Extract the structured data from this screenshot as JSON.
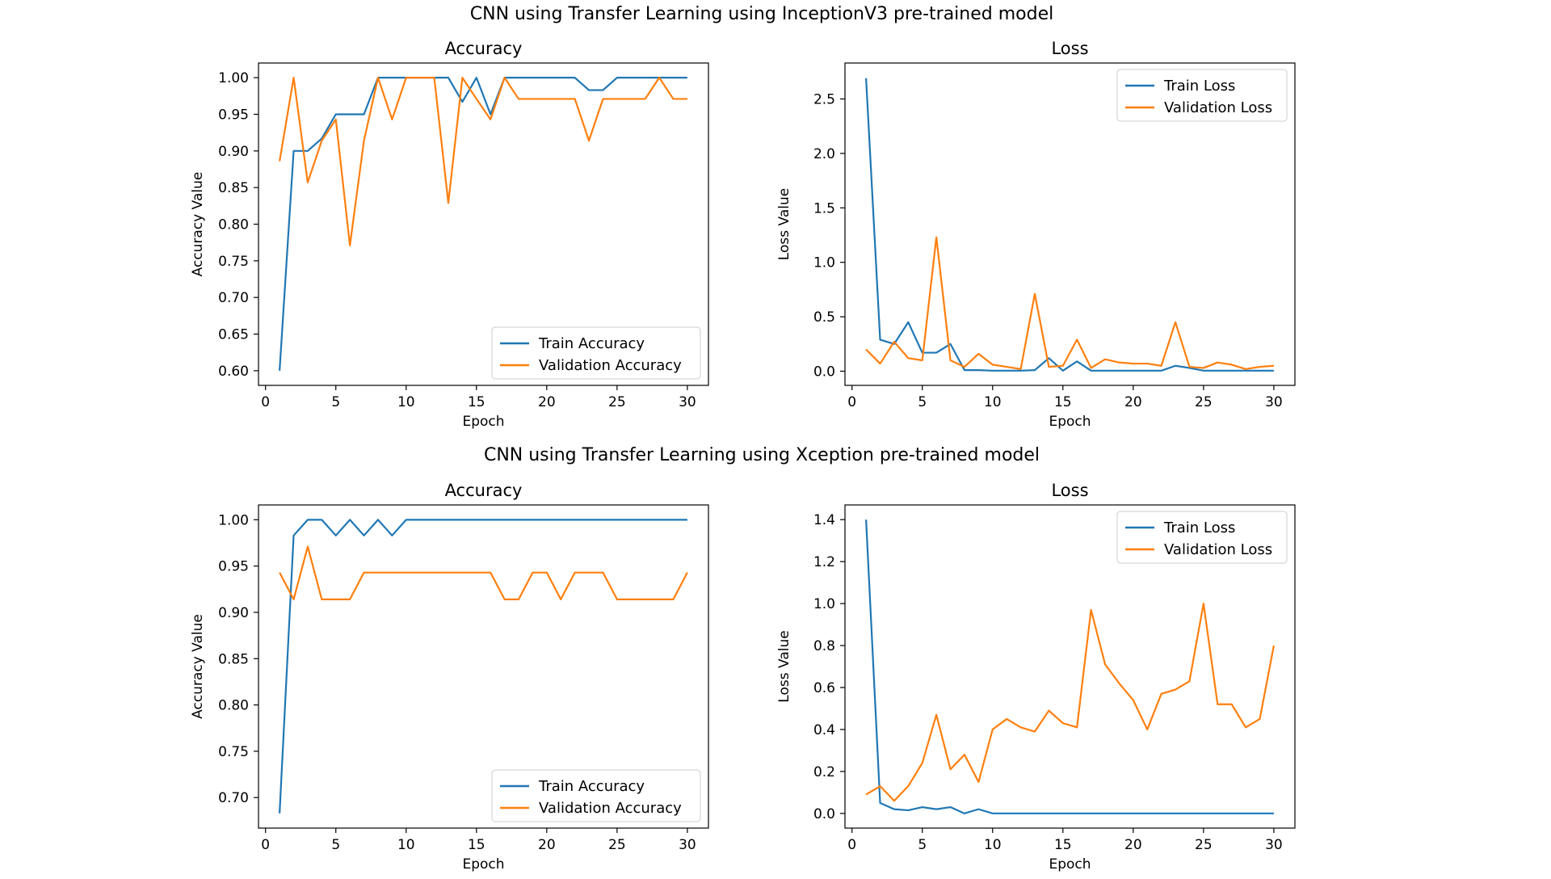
{
  "figure": {
    "row_titles": [
      "CNN using Transfer Learning using InceptionV3 pre-trained model",
      "CNN using Transfer Learning using Xception pre-trained model"
    ]
  },
  "colors": {
    "train": "#1f77b4",
    "validation": "#ff7f0e"
  },
  "chart_data": [
    {
      "type": "line",
      "title": "Accuracy",
      "xlabel": "Epoch",
      "ylabel": "Accuracy Value",
      "xlim": [
        -0.5,
        31.5
      ],
      "ylim": [
        0.58,
        1.02
      ],
      "xticks": [
        0,
        5,
        10,
        15,
        20,
        25,
        30
      ],
      "yticks": [
        0.6,
        0.65,
        0.7,
        0.75,
        0.8,
        0.85,
        0.9,
        0.95,
        1.0
      ],
      "ytick_decimals": 2,
      "legend_position": "lower-right",
      "x": [
        1,
        2,
        3,
        4,
        5,
        6,
        7,
        8,
        9,
        10,
        11,
        12,
        13,
        14,
        15,
        16,
        17,
        18,
        19,
        20,
        21,
        22,
        23,
        24,
        25,
        26,
        27,
        28,
        29,
        30
      ],
      "series": [
        {
          "name": "Train Accuracy",
          "color": "#1f77b4",
          "values": [
            0.6,
            0.9,
            0.9,
            0.917,
            0.95,
            0.95,
            0.95,
            1.0,
            1.0,
            1.0,
            1.0,
            1.0,
            1.0,
            0.967,
            1.0,
            0.95,
            1.0,
            1.0,
            1.0,
            1.0,
            1.0,
            1.0,
            0.983,
            0.983,
            1.0,
            1.0,
            1.0,
            1.0,
            1.0,
            1.0
          ]
        },
        {
          "name": "Validation Accuracy",
          "color": "#ff7f0e",
          "values": [
            0.886,
            1.0,
            0.857,
            0.914,
            0.943,
            0.771,
            0.914,
            1.0,
            0.943,
            1.0,
            1.0,
            1.0,
            0.829,
            1.0,
            0.971,
            0.943,
            1.0,
            0.971,
            0.971,
            0.971,
            0.971,
            0.971,
            0.914,
            0.971,
            0.971,
            0.971,
            0.971,
            1.0,
            0.971,
            0.971
          ]
        }
      ]
    },
    {
      "type": "line",
      "title": "Loss",
      "xlabel": "Epoch",
      "ylabel": "Loss Value",
      "xlim": [
        -0.5,
        31.5
      ],
      "ylim": [
        -0.13,
        2.83
      ],
      "xticks": [
        0,
        5,
        10,
        15,
        20,
        25,
        30
      ],
      "yticks": [
        0.0,
        0.5,
        1.0,
        1.5,
        2.0,
        2.5
      ],
      "ytick_decimals": 1,
      "legend_position": "upper-right",
      "x": [
        1,
        2,
        3,
        4,
        5,
        6,
        7,
        8,
        9,
        10,
        11,
        12,
        13,
        14,
        15,
        16,
        17,
        18,
        19,
        20,
        21,
        22,
        23,
        24,
        25,
        26,
        27,
        28,
        29,
        30
      ],
      "series": [
        {
          "name": "Train Loss",
          "color": "#1f77b4",
          "values": [
            2.69,
            0.29,
            0.25,
            0.45,
            0.17,
            0.17,
            0.25,
            0.01,
            0.01,
            0.005,
            0.005,
            0.005,
            0.01,
            0.12,
            0.005,
            0.09,
            0.005,
            0.005,
            0.005,
            0.005,
            0.005,
            0.005,
            0.05,
            0.03,
            0.005,
            0.005,
            0.005,
            0.005,
            0.005,
            0.005
          ]
        },
        {
          "name": "Validation Loss",
          "color": "#ff7f0e",
          "values": [
            0.2,
            0.07,
            0.27,
            0.12,
            0.1,
            1.23,
            0.1,
            0.04,
            0.16,
            0.06,
            0.04,
            0.02,
            0.71,
            0.04,
            0.05,
            0.29,
            0.03,
            0.11,
            0.08,
            0.07,
            0.07,
            0.05,
            0.45,
            0.04,
            0.03,
            0.08,
            0.06,
            0.02,
            0.04,
            0.05
          ]
        }
      ]
    },
    {
      "type": "line",
      "title": "Accuracy",
      "xlabel": "Epoch",
      "ylabel": "Accuracy Value",
      "xlim": [
        -0.5,
        31.5
      ],
      "ylim": [
        0.667,
        1.016
      ],
      "xticks": [
        0,
        5,
        10,
        15,
        20,
        25,
        30
      ],
      "yticks": [
        0.7,
        0.75,
        0.8,
        0.85,
        0.9,
        0.95,
        1.0
      ],
      "ytick_decimals": 2,
      "legend_position": "lower-right",
      "x": [
        1,
        2,
        3,
        4,
        5,
        6,
        7,
        8,
        9,
        10,
        11,
        12,
        13,
        14,
        15,
        16,
        17,
        18,
        19,
        20,
        21,
        22,
        23,
        24,
        25,
        26,
        27,
        28,
        29,
        30
      ],
      "series": [
        {
          "name": "Train Accuracy",
          "color": "#1f77b4",
          "values": [
            0.683,
            0.983,
            1.0,
            1.0,
            0.983,
            1.0,
            0.983,
            1.0,
            0.983,
            1.0,
            1.0,
            1.0,
            1.0,
            1.0,
            1.0,
            1.0,
            1.0,
            1.0,
            1.0,
            1.0,
            1.0,
            1.0,
            1.0,
            1.0,
            1.0,
            1.0,
            1.0,
            1.0,
            1.0,
            1.0
          ]
        },
        {
          "name": "Validation Accuracy",
          "color": "#ff7f0e",
          "values": [
            0.943,
            0.914,
            0.971,
            0.914,
            0.914,
            0.914,
            0.943,
            0.943,
            0.943,
            0.943,
            0.943,
            0.943,
            0.943,
            0.943,
            0.943,
            0.943,
            0.914,
            0.914,
            0.943,
            0.943,
            0.914,
            0.943,
            0.943,
            0.943,
            0.914,
            0.914,
            0.914,
            0.914,
            0.914,
            0.943
          ]
        }
      ]
    },
    {
      "type": "line",
      "title": "Loss",
      "xlabel": "Epoch",
      "ylabel": "Loss Value",
      "xlim": [
        -0.5,
        31.5
      ],
      "ylim": [
        -0.07,
        1.47
      ],
      "xticks": [
        0,
        5,
        10,
        15,
        20,
        25,
        30
      ],
      "yticks": [
        0.0,
        0.2,
        0.4,
        0.6,
        0.8,
        1.0,
        1.2,
        1.4
      ],
      "ytick_decimals": 1,
      "legend_position": "upper-right",
      "x": [
        1,
        2,
        3,
        4,
        5,
        6,
        7,
        8,
        9,
        10,
        11,
        12,
        13,
        14,
        15,
        16,
        17,
        18,
        19,
        20,
        21,
        22,
        23,
        24,
        25,
        26,
        27,
        28,
        29,
        30
      ],
      "series": [
        {
          "name": "Train Loss",
          "color": "#1f77b4",
          "values": [
            1.4,
            0.05,
            0.02,
            0.015,
            0.03,
            0.02,
            0.03,
            0.0,
            0.02,
            0.0,
            0.0,
            0.0,
            0.0,
            0.0,
            0.0,
            0.0,
            0.0,
            0.0,
            0.0,
            0.0,
            0.0,
            0.0,
            0.0,
            0.0,
            0.0,
            0.0,
            0.0,
            0.0,
            0.0,
            0.0
          ]
        },
        {
          "name": "Validation Loss",
          "color": "#ff7f0e",
          "values": [
            0.09,
            0.13,
            0.06,
            0.13,
            0.24,
            0.47,
            0.21,
            0.28,
            0.15,
            0.4,
            0.45,
            0.41,
            0.39,
            0.49,
            0.43,
            0.41,
            0.97,
            0.71,
            0.62,
            0.54,
            0.4,
            0.57,
            0.59,
            0.63,
            1.0,
            0.52,
            0.52,
            0.41,
            0.45,
            0.8
          ]
        }
      ]
    }
  ]
}
